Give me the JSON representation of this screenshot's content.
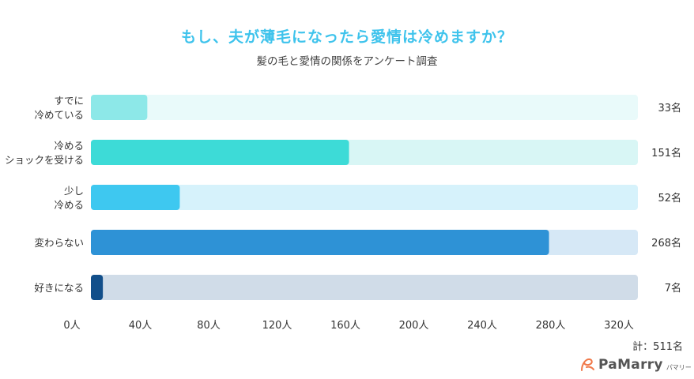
{
  "header": {
    "title": "もし、夫が薄毛になったら愛情は冷めますか？",
    "subtitle": "髪の毛と愛情の関係をアンケート調査"
  },
  "chart_data": {
    "type": "bar",
    "orientation": "horizontal",
    "title": "もし、夫が薄毛になったら愛情は冷めますか？",
    "subtitle": "髪の毛と愛情の関係をアンケート調査",
    "categories": [
      [
        "すでに",
        "冷めている"
      ],
      [
        "冷める",
        "ショックを受ける"
      ],
      [
        "少し",
        "冷める"
      ],
      [
        "変わらない"
      ],
      [
        "好きになる"
      ]
    ],
    "values": [
      33,
      151,
      52,
      268,
      7
    ],
    "value_labels": [
      "33名",
      "151名",
      "52名",
      "268名",
      "7名"
    ],
    "xlim": [
      0,
      320
    ],
    "xticks": [
      "0人",
      "40人",
      "80人",
      "120人",
      "160人",
      "200人",
      "240人",
      "280人",
      "320人"
    ],
    "xtick_values": [
      0,
      40,
      80,
      120,
      160,
      200,
      240,
      280,
      320
    ],
    "colors": [
      "#8de8e8",
      "#3ddbd7",
      "#3ec8f0",
      "#2e92d6",
      "#124f8a"
    ],
    "track_colors": [
      "#e9fafa",
      "#d8f6f5",
      "#d6f2fb",
      "#d6e8f6",
      "#d0dce8"
    ],
    "xlabel": "",
    "ylabel": ""
  },
  "footer": {
    "total": "計：511名",
    "brand": "PaMarry",
    "brand_kana": "パマリー"
  },
  "theme": {
    "title_color": "#3ec3ec",
    "logo_accent": "#f0794a"
  }
}
